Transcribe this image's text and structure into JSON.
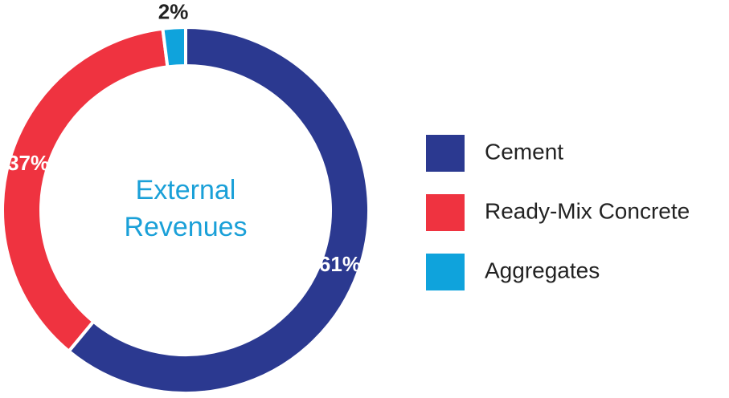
{
  "chart_data": {
    "type": "donut",
    "center_label": "External Revenues",
    "categories": [
      "Cement",
      "Ready-Mix Concrete",
      "Aggregates"
    ],
    "values": [
      61,
      37,
      2
    ],
    "value_labels": [
      "61%",
      "37%",
      "2%"
    ],
    "colors": [
      "#2b3990",
      "#ef3340",
      "#0fa3dc"
    ],
    "legend": "right"
  }
}
